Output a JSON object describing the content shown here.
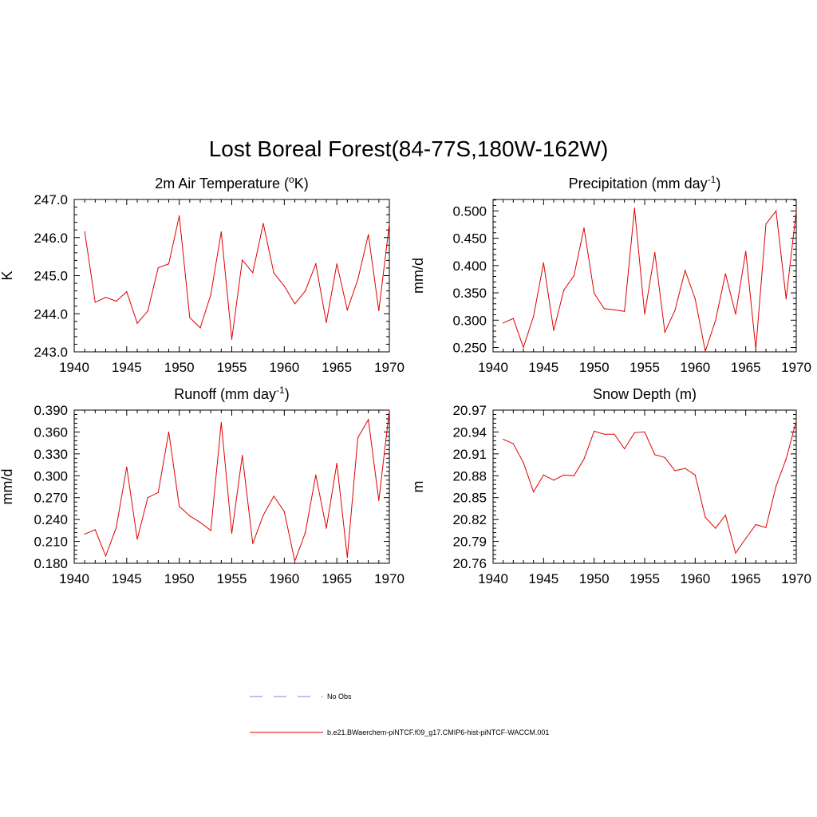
{
  "figure": {
    "title": "Lost Boreal Forest(84-77S,180W-162W)",
    "line_color": "#e00000",
    "legend": [
      {
        "label": "No Obs",
        "style": "dashed",
        "color": "#9a9ad6"
      },
      {
        "label": "b.e21.BWaerchem-piNTCF.f09_g17.CMIP6-hist-piNTCF-WACCM.001",
        "style": "solid",
        "color": "#e00000"
      }
    ]
  },
  "chart_data": [
    {
      "type": "line",
      "title": "2m Air Temperature (",
      "title_sup": "o",
      "title_after": "K)",
      "xlabel": "",
      "ylabel": "K",
      "xlim": [
        1940,
        1970
      ],
      "ylim": [
        243.0,
        247.0
      ],
      "xticks": [
        "1940",
        "1945",
        "1950",
        "1955",
        "1960",
        "1965",
        "1970"
      ],
      "yticks": [
        "243.0",
        "244.0",
        "245.0",
        "246.0",
        "247.0"
      ],
      "grid": false,
      "series": [
        {
          "x": [
            1941,
            1942,
            1943,
            1944,
            1945,
            1946,
            1947,
            1948,
            1949,
            1950,
            1951,
            1952,
            1953,
            1954,
            1955,
            1956,
            1957,
            1958,
            1959,
            1960,
            1961,
            1962,
            1963,
            1964,
            1965,
            1966,
            1967,
            1968,
            1969,
            1970
          ],
          "values": [
            246.15,
            244.3,
            244.43,
            244.33,
            244.58,
            243.75,
            244.07,
            245.21,
            245.31,
            246.57,
            243.9,
            243.63,
            244.5,
            246.15,
            243.33,
            245.41,
            245.08,
            246.37,
            245.07,
            244.73,
            244.26,
            244.6,
            245.31,
            243.77,
            245.31,
            244.1,
            244.9,
            246.08,
            244.08,
            246.36
          ]
        }
      ]
    },
    {
      "type": "line",
      "title": "Precipitation (mm day",
      "title_sup": "-1",
      "title_after": ")",
      "xlabel": "",
      "ylabel": "mm/d",
      "xlim": [
        1940,
        1970
      ],
      "ylim": [
        0.242,
        0.521
      ],
      "xticks": [
        "1940",
        "1945",
        "1950",
        "1955",
        "1960",
        "1965",
        "1970"
      ],
      "yticks": [
        "0.250",
        "0.300",
        "0.350",
        "0.400",
        "0.450",
        "0.500"
      ],
      "grid": false,
      "series": [
        {
          "x": [
            1941,
            1942,
            1943,
            1944,
            1945,
            1946,
            1947,
            1948,
            1949,
            1950,
            1951,
            1952,
            1953,
            1954,
            1955,
            1956,
            1957,
            1958,
            1959,
            1960,
            1961,
            1962,
            1963,
            1964,
            1965,
            1966,
            1967,
            1968,
            1969,
            1970
          ],
          "values": [
            0.295,
            0.303,
            0.25,
            0.307,
            0.405,
            0.281,
            0.355,
            0.381,
            0.469,
            0.349,
            0.321,
            0.319,
            0.316,
            0.505,
            0.311,
            0.424,
            0.278,
            0.318,
            0.391,
            0.339,
            0.243,
            0.299,
            0.385,
            0.311,
            0.426,
            0.247,
            0.476,
            0.5,
            0.339,
            0.5
          ]
        }
      ]
    },
    {
      "type": "line",
      "title": "Runoff (mm day",
      "title_sup": "-1",
      "title_after": ")",
      "xlabel": "",
      "ylabel": "mm/d",
      "xlim": [
        1940,
        1970
      ],
      "ylim": [
        0.18,
        0.39
      ],
      "xticks": [
        "1940",
        "1945",
        "1950",
        "1955",
        "1960",
        "1965",
        "1970"
      ],
      "yticks": [
        "0.180",
        "0.210",
        "0.240",
        "0.270",
        "0.300",
        "0.330",
        "0.360",
        "0.390"
      ],
      "grid": false,
      "series": [
        {
          "x": [
            1941,
            1942,
            1943,
            1944,
            1945,
            1946,
            1947,
            1948,
            1949,
            1950,
            1951,
            1952,
            1953,
            1954,
            1955,
            1956,
            1957,
            1958,
            1959,
            1960,
            1961,
            1962,
            1963,
            1964,
            1965,
            1966,
            1967,
            1968,
            1969,
            1970
          ],
          "values": [
            0.22,
            0.226,
            0.19,
            0.229,
            0.312,
            0.213,
            0.27,
            0.277,
            0.36,
            0.258,
            0.245,
            0.236,
            0.225,
            0.373,
            0.221,
            0.328,
            0.207,
            0.246,
            0.272,
            0.251,
            0.183,
            0.222,
            0.301,
            0.228,
            0.317,
            0.188,
            0.352,
            0.377,
            0.266,
            0.39
          ]
        }
      ]
    },
    {
      "type": "line",
      "title": "Snow Depth (m)",
      "title_sup": "",
      "title_after": "",
      "xlabel": "",
      "ylabel": "m",
      "xlim": [
        1940,
        1970
      ],
      "ylim": [
        20.76,
        20.97
      ],
      "xticks": [
        "1940",
        "1945",
        "1950",
        "1955",
        "1960",
        "1965",
        "1970"
      ],
      "yticks": [
        "20.76",
        "20.79",
        "20.82",
        "20.85",
        "20.88",
        "20.91",
        "20.94",
        "20.97"
      ],
      "grid": false,
      "series": [
        {
          "x": [
            1941,
            1942,
            1943,
            1944,
            1945,
            1946,
            1947,
            1948,
            1949,
            1950,
            1951,
            1952,
            1953,
            1954,
            1955,
            1956,
            1957,
            1958,
            1959,
            1960,
            1961,
            1962,
            1963,
            1964,
            1965,
            1966,
            1967,
            1968,
            1969,
            1970
          ],
          "values": [
            20.93,
            20.924,
            20.898,
            20.858,
            20.881,
            20.874,
            20.881,
            20.88,
            20.903,
            20.941,
            20.937,
            20.937,
            20.917,
            20.939,
            20.94,
            20.909,
            20.905,
            20.887,
            20.89,
            20.881,
            20.823,
            20.808,
            20.826,
            20.774,
            20.794,
            20.813,
            20.809,
            20.866,
            20.903,
            20.955
          ]
        }
      ]
    }
  ]
}
